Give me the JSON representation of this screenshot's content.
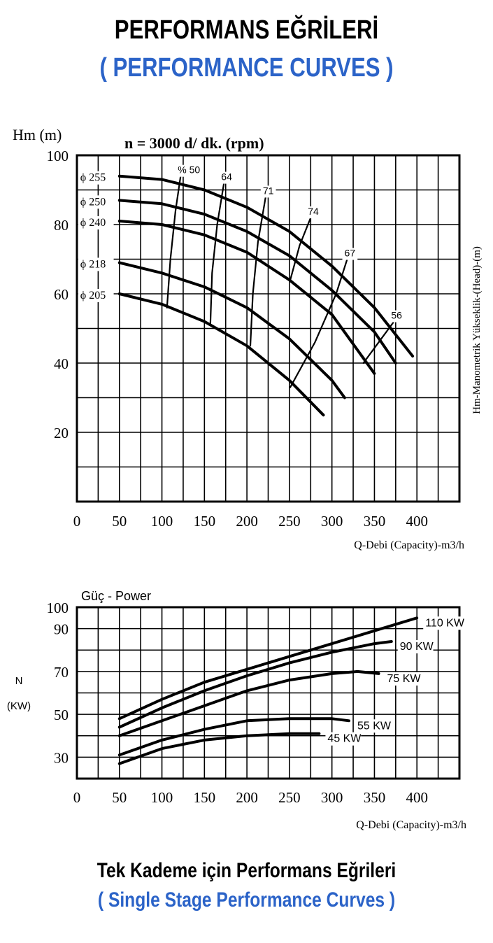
{
  "titles": {
    "main_tr": "PERFORMANS EĞRİLERİ",
    "main_en": "( PERFORMANCE CURVES )",
    "footer_tr": "Tek Kademe için Performans Eğrileri",
    "footer_en": "( Single Stage Performance Curves )"
  },
  "colors": {
    "accent_blue": "#2b63c8",
    "ink": "#000000"
  },
  "chart_data": [
    {
      "type": "line",
      "title": "n = 3000 d/ dk.  (rpm)",
      "ylabel_top": "Hm (m)",
      "ylabel_right": "Hm-Manometrik Yükseklik-(Head)-(m)",
      "xlabel": "Q-Debi (Capacity)-m3/h",
      "xlim": [
        0,
        450
      ],
      "ylim": [
        0,
        100
      ],
      "x_ticks": [
        0,
        50,
        100,
        150,
        200,
        250,
        300,
        350,
        400
      ],
      "y_ticks": [
        20,
        40,
        60,
        80,
        100
      ],
      "grid": true,
      "series": [
        {
          "name": "ϕ 255",
          "x": [
            50,
            100,
            150,
            200,
            250,
            300,
            350,
            395
          ],
          "y": [
            94,
            93,
            90,
            85,
            78,
            68,
            56,
            42
          ]
        },
        {
          "name": "ϕ 250",
          "x": [
            50,
            100,
            150,
            200,
            250,
            300,
            350,
            375
          ],
          "y": [
            87,
            86,
            83,
            78,
            71,
            61,
            49,
            40
          ]
        },
        {
          "name": "ϕ 240",
          "x": [
            50,
            100,
            150,
            200,
            250,
            300,
            350
          ],
          "y": [
            81,
            80,
            77,
            72,
            64,
            54,
            37
          ]
        },
        {
          "name": "ϕ 218",
          "x": [
            50,
            100,
            150,
            200,
            250,
            300,
            315
          ],
          "y": [
            69,
            66,
            62,
            56,
            47,
            35,
            30
          ]
        },
        {
          "name": "ϕ 205",
          "x": [
            50,
            100,
            150,
            200,
            250,
            290
          ],
          "y": [
            60,
            57,
            52,
            45,
            35,
            25
          ]
        }
      ],
      "efficiency_curves": [
        {
          "label": "% 50",
          "x": [
            106,
            110,
            116,
            122
          ],
          "y": [
            56,
            70,
            84,
            94
          ]
        },
        {
          "label": "64",
          "x": [
            157,
            159,
            165,
            173
          ],
          "y": [
            51,
            66,
            80,
            92
          ]
        },
        {
          "label": "71",
          "x": [
            204,
            207,
            213,
            222
          ],
          "y": [
            45,
            60,
            75,
            88
          ]
        },
        {
          "label": "74",
          "x": [
            251,
            262,
            275
          ],
          "y": [
            64,
            74,
            82
          ]
        },
        {
          "label": "67",
          "x": [
            251,
            280,
            305,
            318
          ],
          "y": [
            33,
            46,
            60,
            70
          ]
        },
        {
          "label": "56",
          "x": [
            337,
            355,
            373
          ],
          "y": [
            40,
            46,
            52
          ]
        }
      ]
    },
    {
      "type": "line",
      "title": "Güç - Power",
      "ylabel": "N",
      "yunit": "(KW)",
      "xlabel": "Q-Debi (Capacity)-m3/h",
      "xlim": [
        0,
        450
      ],
      "ylim": [
        20,
        100
      ],
      "x_ticks": [
        0,
        50,
        100,
        150,
        200,
        250,
        300,
        350,
        400
      ],
      "y_ticks": [
        30,
        50,
        70,
        90,
        100
      ],
      "grid": true,
      "series": [
        {
          "name": "110 KW",
          "x": [
            50,
            100,
            150,
            200,
            250,
            300,
            350,
            400
          ],
          "y": [
            48,
            57,
            65,
            71,
            77,
            83,
            89,
            95
          ]
        },
        {
          "name": "90 KW",
          "x": [
            50,
            100,
            150,
            200,
            250,
            300,
            350,
            370
          ],
          "y": [
            44,
            53,
            61,
            68,
            74,
            79,
            83,
            84
          ]
        },
        {
          "name": "75 KW",
          "x": [
            50,
            100,
            150,
            200,
            250,
            300,
            330,
            355
          ],
          "y": [
            40,
            47,
            54,
            61,
            66,
            69,
            70,
            69
          ]
        },
        {
          "name": "55 KW",
          "x": [
            50,
            100,
            150,
            200,
            250,
            300,
            320
          ],
          "y": [
            31,
            38,
            43,
            47,
            48,
            48,
            47
          ]
        },
        {
          "name": "45 KW",
          "x": [
            50,
            100,
            150,
            200,
            250,
            285
          ],
          "y": [
            27,
            34,
            38,
            40,
            41,
            41
          ]
        }
      ]
    }
  ]
}
